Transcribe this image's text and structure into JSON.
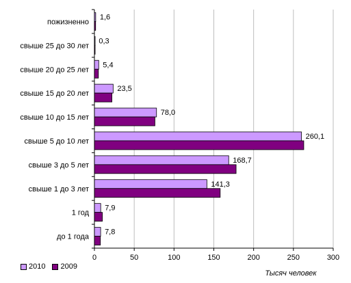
{
  "chart_data": {
    "type": "bar",
    "orientation": "horizontal",
    "categories": [
      "пожизненно",
      "свыше 25 до 30 лет",
      "свыше 20 до 25 лет",
      "свыше 15 до 20 лет",
      "свыше 10  до 15 лет",
      "свыше 5 до 10 лет",
      "свыше 3 до 5 лет",
      "свыше 1 до 3 лет",
      "1 год",
      "до 1 года"
    ],
    "series": [
      {
        "name": "2010",
        "color": "#cc99ff",
        "values": [
          1.6,
          0.3,
          5.4,
          23.5,
          78.0,
          260.1,
          168.7,
          141.3,
          7.9,
          7.8
        ],
        "data_labels": [
          "1,6",
          "0,3",
          "5,4",
          "23,5",
          "78,0",
          "260,1",
          "168,7",
          "141,3",
          "7,9",
          "7,8"
        ]
      },
      {
        "name": "2009",
        "color": "#800080",
        "values": [
          1.5,
          0.3,
          5.0,
          22.0,
          76.0,
          263.0,
          178.0,
          158.0,
          10.0,
          7.5
        ]
      }
    ],
    "xlim": [
      0,
      300
    ],
    "xticks": [
      0,
      50,
      100,
      150,
      200,
      250,
      300
    ],
    "xlabel": "Тысяч человек",
    "grid": "vertical",
    "legend_position": "bottom-left"
  }
}
